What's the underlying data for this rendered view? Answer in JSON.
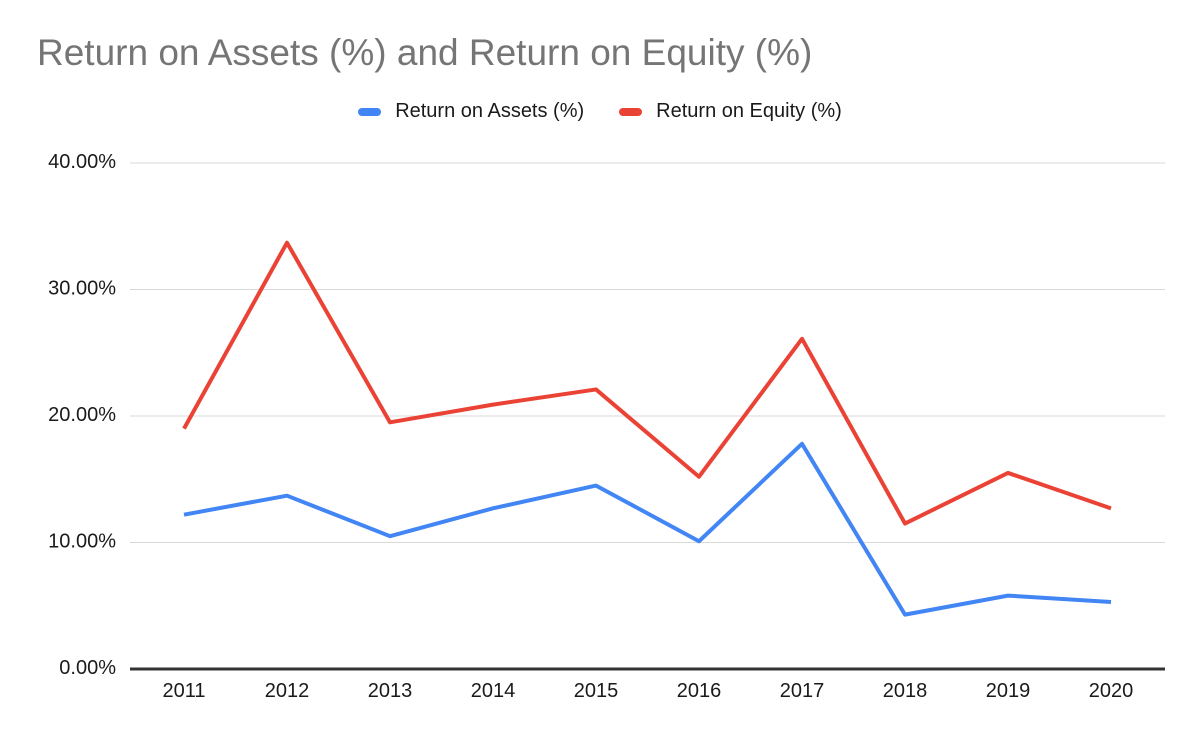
{
  "chart": {
    "title": "Return on Assets (%) and Return on Equity (%)",
    "colors": {
      "series_roa": "#4285F4",
      "series_roe": "#EA4335",
      "title_text": "#757575",
      "tick_text": "#1a1a1a",
      "gridline": "#d9d9d9",
      "baseline_axis": "#333333",
      "background": "#ffffff"
    }
  },
  "chart_data": {
    "type": "line",
    "title": "Return on Assets (%) and Return on Equity (%)",
    "xlabel": "",
    "ylabel": "",
    "categories": [
      "2011",
      "2012",
      "2013",
      "2014",
      "2015",
      "2016",
      "2017",
      "2018",
      "2019",
      "2020"
    ],
    "series": [
      {
        "name": "Return on Assets (%)",
        "color": "#4285F4",
        "values": [
          12.2,
          13.7,
          10.5,
          12.7,
          14.5,
          10.1,
          17.8,
          4.3,
          5.8,
          5.3
        ]
      },
      {
        "name": "Return on Equity (%)",
        "color": "#EA4335",
        "values": [
          19.0,
          33.7,
          19.5,
          20.9,
          22.1,
          15.2,
          26.1,
          11.5,
          15.5,
          12.7
        ]
      }
    ],
    "ylim": [
      0,
      40
    ],
    "y_ticks": [
      {
        "value": 0,
        "label": "0.00%"
      },
      {
        "value": 10,
        "label": "10.00%"
      },
      {
        "value": 20,
        "label": "20.00%"
      },
      {
        "value": 30,
        "label": "30.00%"
      },
      {
        "value": 40,
        "label": "40.00%"
      }
    ],
    "grid": true,
    "legend_position": "top"
  }
}
